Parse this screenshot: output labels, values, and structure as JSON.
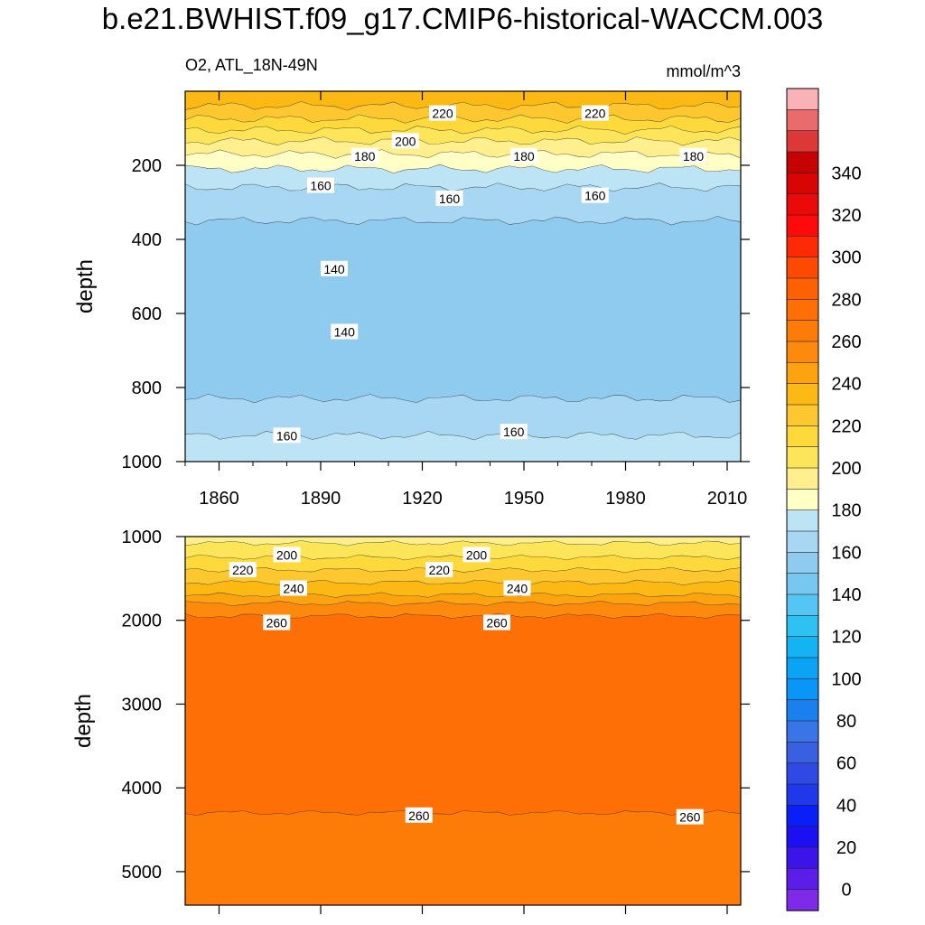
{
  "title": "b.e21.BWHIST.f09_g17.CMIP6-historical-WACCM.003",
  "chart_data": [
    {
      "type": "contour",
      "panel": "upper",
      "left_label": "O2, ATL_18N-49N",
      "right_label": "mmol/m^3",
      "xlabel": "",
      "ylabel": "depth",
      "xlim": [
        1850,
        2014
      ],
      "ylim": [
        1000,
        0
      ],
      "x_ticks": [
        "1860",
        "1890",
        "1920",
        "1950",
        "1980",
        "2010"
      ],
      "y_ticks": [
        "200",
        "400",
        "600",
        "800",
        "1000"
      ],
      "bands": [
        {
          "level_top": 0,
          "level_bottom": 40,
          "value": 230,
          "color": "#fdb913"
        },
        {
          "level_top": 40,
          "level_bottom": 75,
          "value": 220,
          "color": "#fdc72f"
        },
        {
          "level_top": 75,
          "level_bottom": 105,
          "value": 210,
          "color": "#fdd93b"
        },
        {
          "level_top": 105,
          "level_bottom": 135,
          "value": 200,
          "color": "#fde55a"
        },
        {
          "level_top": 135,
          "level_bottom": 170,
          "value": 190,
          "color": "#fff08d"
        },
        {
          "level_top": 170,
          "level_bottom": 210,
          "value": 180,
          "color": "#ffffc6"
        },
        {
          "level_top": 210,
          "level_bottom": 260,
          "value": 170,
          "color": "#bde4f4"
        },
        {
          "level_top": 260,
          "level_bottom": 350,
          "value": 160,
          "color": "#a7d7f3"
        },
        {
          "level_top": 350,
          "level_bottom": 830,
          "value": 150,
          "color": "#8ecbef"
        },
        {
          "level_top": 830,
          "level_bottom": 930,
          "value": 160,
          "color": "#a7d7f3"
        },
        {
          "level_top": 930,
          "level_bottom": 1000,
          "value": 170,
          "color": "#bde4f4"
        }
      ],
      "contour_labels": [
        {
          "x": 1926,
          "depth": 60,
          "text": "220"
        },
        {
          "x": 1971,
          "depth": 60,
          "text": "220"
        },
        {
          "x": 1915,
          "depth": 135,
          "text": "200"
        },
        {
          "x": 1903,
          "depth": 175,
          "text": "180"
        },
        {
          "x": 1950,
          "depth": 175,
          "text": "180"
        },
        {
          "x": 2000,
          "depth": 175,
          "text": "180"
        },
        {
          "x": 1890,
          "depth": 255,
          "text": "160"
        },
        {
          "x": 1928,
          "depth": 290,
          "text": "160"
        },
        {
          "x": 1971,
          "depth": 282,
          "text": "160"
        },
        {
          "x": 1894,
          "depth": 480,
          "text": "140"
        },
        {
          "x": 1897,
          "depth": 650,
          "text": "140"
        },
        {
          "x": 1880,
          "depth": 930,
          "text": "160"
        },
        {
          "x": 1947,
          "depth": 920,
          "text": "160"
        }
      ]
    },
    {
      "type": "contour",
      "panel": "lower",
      "xlabel": "",
      "ylabel": "depth",
      "xlim": [
        1850,
        2014
      ],
      "ylim": [
        5400,
        1000
      ],
      "y_ticks": [
        "1000",
        "2000",
        "3000",
        "4000",
        "5000"
      ],
      "bands": [
        {
          "level_top": 1000,
          "level_bottom": 1080,
          "value": 190,
          "color": "#fff08d"
        },
        {
          "level_top": 1080,
          "level_bottom": 1250,
          "value": 200,
          "color": "#fde55a"
        },
        {
          "level_top": 1250,
          "level_bottom": 1400,
          "value": 210,
          "color": "#fdd93b"
        },
        {
          "level_top": 1400,
          "level_bottom": 1550,
          "value": 220,
          "color": "#fdc72f"
        },
        {
          "level_top": 1550,
          "level_bottom": 1700,
          "value": 230,
          "color": "#fdb913"
        },
        {
          "level_top": 1700,
          "level_bottom": 1800,
          "value": 240,
          "color": "#fda30f"
        },
        {
          "level_top": 1800,
          "level_bottom": 1950,
          "value": 250,
          "color": "#fd8a0c"
        },
        {
          "level_top": 1950,
          "level_bottom": 4300,
          "value": 260,
          "color": "#fe6f06"
        },
        {
          "level_top": 4300,
          "level_bottom": 5400,
          "value": 255,
          "color": "#fd7c08"
        }
      ],
      "contour_labels": [
        {
          "x": 1880,
          "depth": 1220,
          "text": "200"
        },
        {
          "x": 1936,
          "depth": 1220,
          "text": "200"
        },
        {
          "x": 1867,
          "depth": 1400,
          "text": "220"
        },
        {
          "x": 1925,
          "depth": 1400,
          "text": "220"
        },
        {
          "x": 1882,
          "depth": 1620,
          "text": "240"
        },
        {
          "x": 1948,
          "depth": 1620,
          "text": "240"
        },
        {
          "x": 1877,
          "depth": 2030,
          "text": "260"
        },
        {
          "x": 1942,
          "depth": 2030,
          "text": "260"
        },
        {
          "x": 1919,
          "depth": 4330,
          "text": "260"
        },
        {
          "x": 1999,
          "depth": 4350,
          "text": "260"
        }
      ]
    },
    {
      "type": "colorbar",
      "labels": [
        "0",
        "20",
        "40",
        "60",
        "80",
        "100",
        "120",
        "140",
        "160",
        "180",
        "200",
        "220",
        "240",
        "260",
        "280",
        "300",
        "320",
        "340"
      ],
      "colors": [
        "#7f2ae8",
        "#5a1ee8",
        "#3c14ea",
        "#1a10f2",
        "#0a1ef8",
        "#1f38ea",
        "#2f4ae4",
        "#3a60e2",
        "#3a75e8",
        "#1a80ee",
        "#0a95f8",
        "#0aa3f5",
        "#14b4f4",
        "#2ec2f2",
        "#55c6f4",
        "#76c8f2",
        "#8ecbef",
        "#a7d7f3",
        "#bde4f4",
        "#ffffc6",
        "#fff08d",
        "#fde55a",
        "#fdd93b",
        "#fdc72f",
        "#fdb913",
        "#fda30f",
        "#fd8a0c",
        "#fd7c08",
        "#fe6f06",
        "#fe6004",
        "#fd4a02",
        "#fe2a06",
        "#ff0a0a",
        "#ea0a0a",
        "#d80505",
        "#c60202",
        "#dc3838",
        "#ea6b6b",
        "#f9b3b6"
      ]
    }
  ]
}
